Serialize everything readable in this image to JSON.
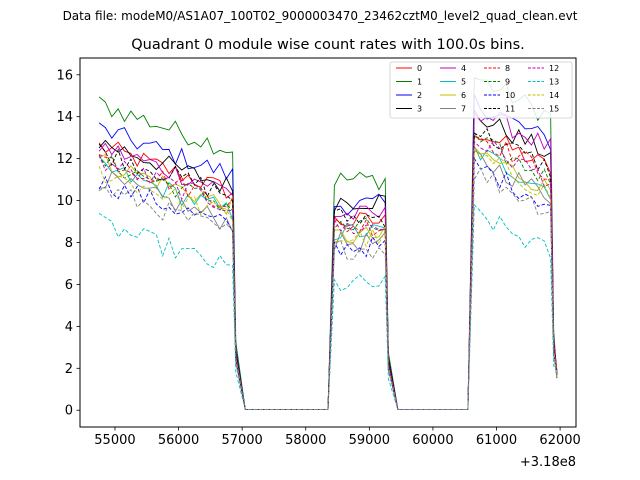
{
  "chart_data": {
    "type": "line",
    "suptitle": "Data file: modeM0/AS1A07_100T02_9000003470_23462cztM0_level2_quad_clean.evt",
    "title": "Quadrant 0 module wise count rates with 100.0s bins.",
    "xlabel": "",
    "ylabel": "",
    "x_offset_label": "+3.18e8",
    "xlim": [
      54450,
      62250
    ],
    "ylim": [
      -0.8,
      16.8
    ],
    "x_ticks": [
      {
        "value": 55000,
        "label": "55000"
      },
      {
        "value": 56000,
        "label": "56000"
      },
      {
        "value": 57000,
        "label": "57000"
      },
      {
        "value": 58000,
        "label": "58000"
      },
      {
        "value": 59000,
        "label": "59000"
      },
      {
        "value": 60000,
        "label": "60000"
      },
      {
        "value": 61000,
        "label": "61000"
      },
      {
        "value": 62000,
        "label": "62000"
      }
    ],
    "y_ticks": [
      {
        "value": 0,
        "label": "0"
      },
      {
        "value": 2,
        "label": "2"
      },
      {
        "value": 4,
        "label": "4"
      },
      {
        "value": 6,
        "label": "6"
      },
      {
        "value": 8,
        "label": "8"
      },
      {
        "value": 10,
        "label": "10"
      },
      {
        "value": 12,
        "label": "12"
      },
      {
        "value": 14,
        "label": "14"
      },
      {
        "value": 16,
        "label": "16"
      }
    ],
    "legend_position": "top-right",
    "series": [
      {
        "name": "0",
        "color": "#ff0000",
        "dash": false,
        "level1": 11.0,
        "level2": 9.0,
        "level3": 12.5
      },
      {
        "name": "1",
        "color": "#008000",
        "dash": false,
        "level1": 13.0,
        "level2": 11.0,
        "level3": 15.0
      },
      {
        "name": "2",
        "color": "#0000ff",
        "dash": false,
        "level1": 11.8,
        "level2": 9.8,
        "level3": 13.8
      },
      {
        "name": "3",
        "color": "#000000",
        "dash": false,
        "level1": 11.2,
        "level2": 10.0,
        "level3": 13.2
      },
      {
        "name": "4",
        "color": "#bf00bf",
        "dash": false,
        "level1": 11.0,
        "level2": 9.3,
        "level3": 13.5
      },
      {
        "name": "5",
        "color": "#00bfbf",
        "dash": false,
        "level1": 10.0,
        "level2": 8.5,
        "level3": 11.5
      },
      {
        "name": "6",
        "color": "#bfbf00",
        "dash": false,
        "level1": 10.3,
        "level2": 8.3,
        "level3": 11.5
      },
      {
        "name": "7",
        "color": "#808080",
        "dash": false,
        "level1": 9.5,
        "level2": 8.0,
        "level3": 11.2
      },
      {
        "name": "8",
        "color": "#ff0000",
        "dash": true,
        "level1": 10.5,
        "level2": 8.8,
        "level3": 12.3
      },
      {
        "name": "9",
        "color": "#008000",
        "dash": true,
        "level1": 10.3,
        "level2": 8.7,
        "level3": 12.0
      },
      {
        "name": "10",
        "color": "#0000ff",
        "dash": true,
        "level1": 9.3,
        "level2": 7.8,
        "level3": 10.8
      },
      {
        "name": "11",
        "color": "#000000",
        "dash": true,
        "level1": 10.8,
        "level2": 9.2,
        "level3": 12.5
      },
      {
        "name": "12",
        "color": "#bf00bf",
        "dash": true,
        "level1": 10.3,
        "level2": 8.7,
        "level3": 12.0
      },
      {
        "name": "13",
        "color": "#00bfbf",
        "dash": true,
        "level1": 7.3,
        "level2": 6.0,
        "level3": 8.5
      },
      {
        "name": "14",
        "color": "#bfbf00",
        "dash": true,
        "level1": 9.8,
        "level2": 8.2,
        "level3": 11.3
      },
      {
        "name": "15",
        "color": "#808080",
        "dash": true,
        "level1": 9.0,
        "level2": 7.7,
        "level3": 10.5
      }
    ],
    "segments": [
      {
        "kind": "on",
        "start": 54750,
        "end": 56850,
        "level": "level1"
      },
      {
        "kind": "off",
        "start": 57050,
        "end": 58350
      },
      {
        "kind": "on",
        "start": 58450,
        "end": 59250,
        "level": "level2"
      },
      {
        "kind": "off",
        "start": 59450,
        "end": 60550
      },
      {
        "kind": "on",
        "start": 60650,
        "end": 61850,
        "level": "level3"
      }
    ]
  }
}
